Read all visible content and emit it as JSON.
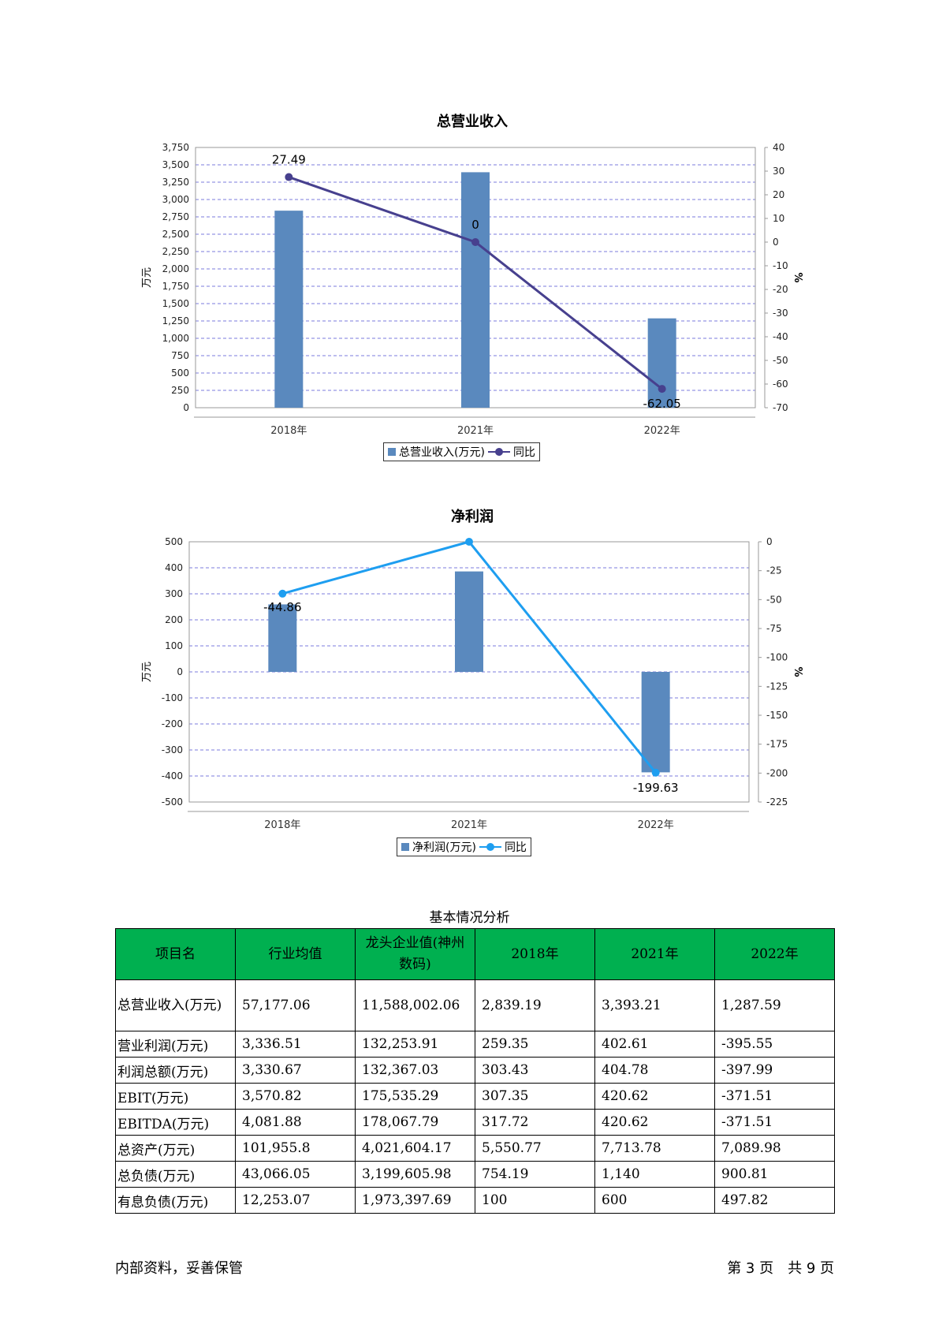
{
  "chart_data": [
    {
      "type": "bar",
      "title": "总营业收入",
      "categories": [
        "2018年",
        "2021年",
        "2022年"
      ],
      "ylabel": "万元",
      "y2label": "%",
      "ylim": [
        0,
        3750
      ],
      "yticks": [
        0,
        250,
        500,
        750,
        1000,
        1250,
        1500,
        1750,
        2000,
        2250,
        2500,
        2750,
        3000,
        3250,
        3500,
        3750
      ],
      "y2lim": [
        -70,
        40
      ],
      "y2ticks": [
        40,
        30,
        20,
        10,
        0,
        -10,
        -20,
        -30,
        -40,
        -50,
        -60,
        -70
      ],
      "grid": true,
      "legend_position": "bottom",
      "series": [
        {
          "name": "总营业收入(万元)",
          "type": "bar",
          "values": [
            2839.19,
            3393.21,
            1287.59
          ],
          "color": "#5a89be"
        },
        {
          "name": "同比",
          "type": "line",
          "axis": "right",
          "values": [
            27.49,
            0,
            -62.05
          ],
          "labels": [
            "27.49",
            "0",
            "-62.05"
          ],
          "color": "#47408e"
        }
      ]
    },
    {
      "type": "bar",
      "title": "净利润",
      "categories": [
        "2018年",
        "2021年",
        "2022年"
      ],
      "ylabel": "万元",
      "y2label": "%",
      "ylim": [
        -500,
        500
      ],
      "yticks": [
        500,
        400,
        300,
        200,
        100,
        0,
        -100,
        -200,
        -300,
        -400,
        -500
      ],
      "y2lim": [
        -225,
        0
      ],
      "y2ticks": [
        0,
        -25,
        -50,
        -75,
        -100,
        -125,
        -150,
        -175,
        -200,
        -225
      ],
      "grid": true,
      "legend_position": "bottom",
      "series": [
        {
          "name": "净利润(万元)",
          "type": "bar",
          "values": [
            259.35,
            386,
            -386
          ],
          "color": "#5a89be"
        },
        {
          "name": "同比",
          "type": "line",
          "axis": "right",
          "values": [
            -44.86,
            0,
            -199.63
          ],
          "labels": [
            "-44.86",
            "",
            "-199.63"
          ],
          "color": "#1e9ef0"
        }
      ]
    }
  ],
  "table": {
    "title": "基本情况分析",
    "headers": [
      "项目名",
      "行业均值",
      "龙头企业值(神州数码)",
      "2018年",
      "2021年",
      "2022年"
    ],
    "rows": [
      [
        "总营业收入(万元)",
        "57,177.06",
        "11,588,002.06",
        "2,839.19",
        "3,393.21",
        "1,287.59"
      ],
      [
        "营业利润(万元)",
        "3,336.51",
        "132,253.91",
        "259.35",
        "402.61",
        "-395.55"
      ],
      [
        "利润总额(万元)",
        "3,330.67",
        "132,367.03",
        "303.43",
        "404.78",
        "-397.99"
      ],
      [
        "EBIT(万元)",
        "3,570.82",
        "175,535.29",
        "307.35",
        "420.62",
        "-371.51"
      ],
      [
        "EBITDA(万元)",
        "4,081.88",
        "178,067.79",
        "317.72",
        "420.62",
        "-371.51"
      ],
      [
        "总资产(万元)",
        "101,955.8",
        "4,021,604.17",
        "5,550.77",
        "7,713.78",
        "7,089.98"
      ],
      [
        "总负债(万元)",
        "43,066.05",
        "3,199,605.98",
        "754.19",
        "1,140",
        "900.81"
      ],
      [
        "有息负债(万元)",
        "12,253.07",
        "1,973,397.69",
        "100",
        "600",
        "497.82"
      ]
    ]
  },
  "footer": {
    "left": "内部资料，妥善保管",
    "right": "第 3 页　共 9 页"
  }
}
